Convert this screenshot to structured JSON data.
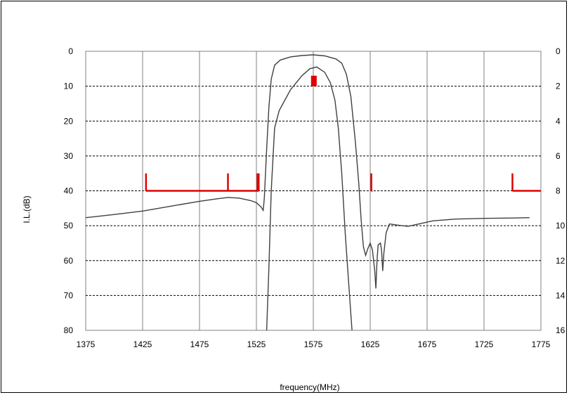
{
  "chart_data": {
    "type": "line",
    "title": "",
    "xlabel": "frequency(MHz)",
    "ylabel": "I.L.(dB)",
    "xlim": [
      1375,
      1775
    ],
    "ylim": [
      0,
      80
    ],
    "y_inverted": true,
    "x_ticks": [
      1375,
      1425,
      1475,
      1525,
      1575,
      1625,
      1675,
      1725,
      1775
    ],
    "y_ticks": [
      0,
      10,
      20,
      30,
      40,
      50,
      60,
      70,
      80
    ],
    "y2_ticks": [
      0,
      2,
      4,
      6,
      8,
      10,
      12,
      14,
      16
    ],
    "y2lim": [
      0,
      16
    ],
    "grid": true,
    "series": [
      {
        "color": "#404040",
        "points": [
          [
            1375,
            47.7
          ],
          [
            1400,
            46.8
          ],
          [
            1425,
            45.8
          ],
          [
            1450,
            44.4
          ],
          [
            1475,
            43.0
          ],
          [
            1490,
            42.3
          ],
          [
            1500,
            41.9
          ],
          [
            1510,
            42.1
          ],
          [
            1520,
            42.8
          ],
          [
            1525,
            43.4
          ],
          [
            1529,
            44.6
          ],
          [
            1531,
            45.6
          ],
          [
            1532,
            42.0
          ],
          [
            1534,
            28.0
          ],
          [
            1536,
            16.0
          ],
          [
            1538,
            8.0
          ],
          [
            1541,
            4.0
          ],
          [
            1546,
            2.5
          ],
          [
            1555,
            1.6
          ],
          [
            1565,
            1.2
          ],
          [
            1575,
            1.0
          ],
          [
            1585,
            1.3
          ],
          [
            1595,
            2.2
          ],
          [
            1600,
            3.4
          ],
          [
            1604,
            6.5
          ],
          [
            1608,
            13.0
          ],
          [
            1612,
            26.0
          ],
          [
            1615,
            38.0
          ],
          [
            1617,
            48.0
          ],
          [
            1619,
            56.0
          ],
          [
            1621,
            58.5
          ],
          [
            1623,
            56.5
          ],
          [
            1625,
            55.0
          ],
          [
            1627,
            57.0
          ],
          [
            1629,
            63.0
          ],
          [
            1630,
            68.0
          ],
          [
            1631,
            60.0
          ],
          [
            1632,
            55.5
          ],
          [
            1634,
            55.0
          ],
          [
            1635,
            57.0
          ],
          [
            1636,
            63.0
          ],
          [
            1637,
            58.0
          ],
          [
            1639,
            52.0
          ],
          [
            1642,
            49.5
          ],
          [
            1648,
            49.8
          ],
          [
            1658,
            50.2
          ],
          [
            1668,
            49.5
          ],
          [
            1680,
            48.6
          ],
          [
            1700,
            48.1
          ],
          [
            1725,
            47.9
          ],
          [
            1750,
            47.8
          ],
          [
            1765,
            47.7
          ]
        ]
      },
      {
        "color": "#404040",
        "points": [
          [
            1534,
            80.0
          ],
          [
            1536,
            62.0
          ],
          [
            1538,
            40.0
          ],
          [
            1541,
            22.0
          ],
          [
            1545,
            17.0
          ],
          [
            1550,
            14.0
          ],
          [
            1555,
            11.0
          ],
          [
            1560,
            9.0
          ],
          [
            1565,
            7.0
          ],
          [
            1572,
            5.0
          ],
          [
            1578,
            4.5
          ],
          [
            1585,
            6.0
          ],
          [
            1590,
            9.0
          ],
          [
            1594,
            14.0
          ],
          [
            1597,
            22.0
          ],
          [
            1600,
            35.0
          ],
          [
            1603,
            52.0
          ],
          [
            1606,
            66.0
          ],
          [
            1609,
            80.0
          ]
        ]
      }
    ],
    "mask": {
      "color": "#e00000",
      "segments": [
        {
          "x": [
            1428,
            1527
          ],
          "y": 40,
          "tick_top": 35,
          "ticks": [
            1428,
            1500,
            1526,
            1527
          ]
        },
        {
          "x": [
            1626,
            1627
          ],
          "y": 40,
          "tick_top": 35,
          "ticks": [
            1626
          ]
        },
        {
          "x": [
            1750,
            1775
          ],
          "y": 40,
          "tick_top": 35,
          "ticks": [
            1750
          ]
        }
      ],
      "marker": {
        "x": [
          1573,
          1578
        ],
        "y": [
          7,
          10
        ]
      }
    }
  }
}
